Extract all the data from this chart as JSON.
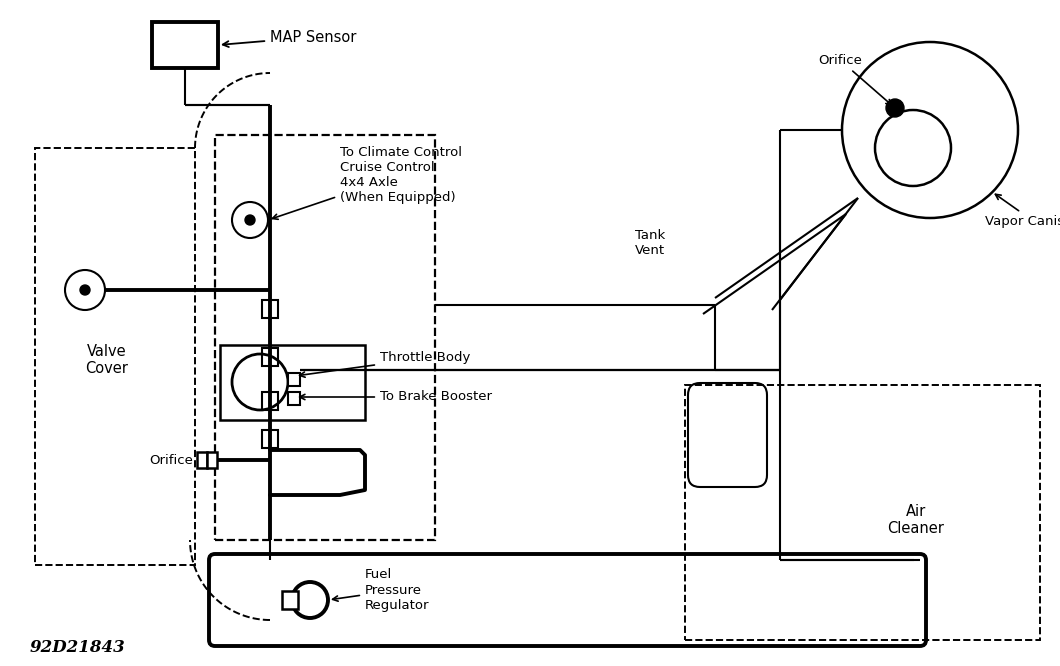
{
  "bg_color": "#ffffff",
  "line_color": "#000000",
  "diagram_id": "92D21843",
  "lw_thin": 1.5,
  "lw_thick": 2.8,
  "lw_dash": 1.4,
  "labels": {
    "map_sensor": "MAP Sensor",
    "climate_control": "To Climate Control\nCruise Control\n4x4 Axle\n(When Equipped)",
    "throttle_body": "Throttle Body",
    "brake_booster": "To Brake Booster",
    "valve_cover": "Valve\nCover",
    "orifice_left": "Orifice",
    "orifice_top": "Orifice",
    "tank_vent": "Tank\nVent",
    "vapor_canister": "Vapor Canister",
    "air_cleaner": "Air\nCleaner",
    "fuel_pressure": "Fuel\nPressure\nRegulator"
  }
}
